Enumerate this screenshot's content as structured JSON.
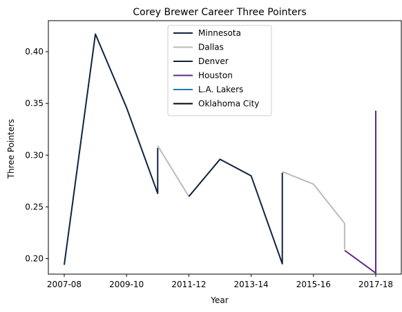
{
  "chart_data": {
    "type": "line",
    "title": "Corey Brewer Career Three Pointers",
    "xlabel": "Year",
    "ylabel": "Three Pointers",
    "x_ticks": [
      "2007-08",
      "2009-10",
      "2011-12",
      "2013-14",
      "2015-16",
      "2017-18"
    ],
    "xlim": [
      "2007-08",
      "2017-18"
    ],
    "ylim": [
      0.185,
      0.43
    ],
    "y_ticks": [
      0.2,
      0.25,
      0.3,
      0.35,
      0.4
    ],
    "y_tick_labels": [
      "0.20",
      "0.25",
      "0.30",
      "0.35",
      "0.40"
    ],
    "grid": false,
    "legend_position": "top-center",
    "series": [
      {
        "name": "Minnesota",
        "color": "#0C2340",
        "points": [
          {
            "x": "2007-08",
            "y": 0.194
          },
          {
            "x": "2008-09",
            "y": 0.417
          },
          {
            "x": "2009-10",
            "y": 0.346
          },
          {
            "x": "2010-11",
            "y": 0.263
          },
          {
            "x": "2010-11",
            "y": 0.307
          }
        ]
      },
      {
        "name": "Dallas",
        "color": "#BBBBBB",
        "points": [
          {
            "x": "2010-11",
            "y": 0.309
          },
          {
            "x": "2011-12",
            "y": 0.26
          }
        ]
      },
      {
        "name": "Denver",
        "color": "#0E2240",
        "points": [
          {
            "x": "2011-12",
            "y": 0.26
          },
          {
            "x": "2012-13",
            "y": 0.296
          },
          {
            "x": "2013-14",
            "y": 0.28
          },
          {
            "x": "2014-15",
            "y": 0.195
          },
          {
            "x": "2014-15",
            "y": 0.283
          }
        ]
      },
      {
        "name": "Houston",
        "color": "#5B2A86",
        "points": [
          {
            "x": "2016-17",
            "y": 0.208
          },
          {
            "x": "2017-18",
            "y": 0.186
          },
          {
            "x": "2017-18",
            "y": 0.343
          }
        ]
      },
      {
        "name": "L.A. Lakers",
        "color": "#1F77B4",
        "points": []
      },
      {
        "name": "Oklahoma City",
        "color": "#000000",
        "points": []
      },
      {
        "name": "",
        "color": "#BBBBBB",
        "points": [
          {
            "x": "2014-15",
            "y": 0.284
          },
          {
            "x": "2015-16",
            "y": 0.272
          },
          {
            "x": "2016-17",
            "y": 0.234
          },
          {
            "x": "2016-17",
            "y": 0.209
          }
        ]
      }
    ],
    "legend": [
      "Minnesota",
      "Dallas",
      "Denver",
      "Houston",
      "L.A. Lakers",
      "Oklahoma City"
    ]
  }
}
